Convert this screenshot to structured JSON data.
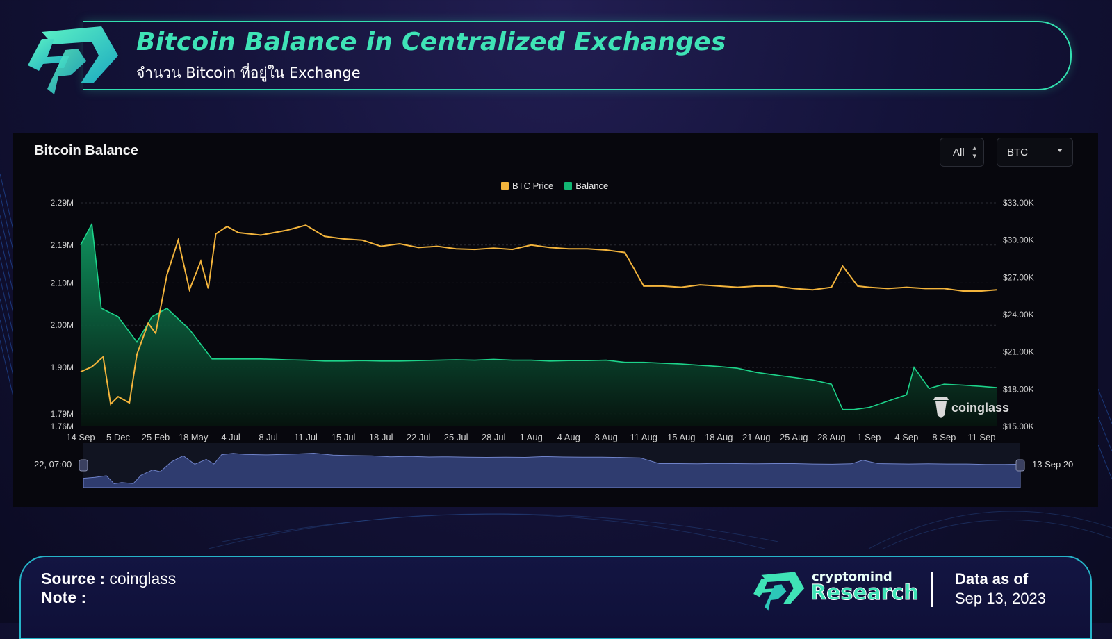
{
  "header": {
    "title": "Bitcoin Balance in Centralized Exchanges",
    "subtitle": "จำนวน Bitcoin ที่อยู่ใน Exchange"
  },
  "panel": {
    "title": "Bitcoin Balance",
    "range_select": "All",
    "asset_select": "BTC",
    "watermark": "coinglass",
    "navigator_start": "22, 07:00",
    "navigator_end": "13 Sep 20"
  },
  "colors": {
    "accent": "#3fe3b6",
    "price": "#f3b43c",
    "balance": "#12b673"
  },
  "chart_data": {
    "type": "area",
    "legend": [
      "BTC Price",
      "Balance"
    ],
    "legend_position": "top-center",
    "grid": true,
    "x_labels": [
      "14 Sep",
      "5 Dec",
      "25 Feb",
      "18 May",
      "4 Jul",
      "8 Jul",
      "11 Jul",
      "15 Jul",
      "18 Jul",
      "22 Jul",
      "25 Jul",
      "28 Jul",
      "1 Aug",
      "4 Aug",
      "8 Aug",
      "11 Aug",
      "15 Aug",
      "18 Aug",
      "21 Aug",
      "25 Aug",
      "28 Aug",
      "1 Sep",
      "4 Sep",
      "8 Sep",
      "11 Sep"
    ],
    "y_left_ticks": [
      "2.29M",
      "2.19M",
      "2.10M",
      "2.00M",
      "1.90M",
      "1.79M",
      "1.76M"
    ],
    "y_right_ticks": [
      "$33.00K",
      "$30.00K",
      "$27.00K",
      "$24.00K",
      "$21.00K",
      "$18.00K",
      "$15.00K"
    ],
    "y_left_range": [
      1.76,
      2.29
    ],
    "y_right_range": [
      15000,
      33000
    ],
    "series": [
      {
        "name": "Balance",
        "axis": "left",
        "unit": "M BTC",
        "x": [
          0,
          0.3,
          0.55,
          1,
          1.5,
          1.9,
          2.3,
          2.9,
          3.5,
          4.2,
          4.8,
          5.5,
          6,
          6.5,
          7,
          7.5,
          8,
          8.5,
          9,
          9.5,
          10,
          10.5,
          11,
          11.5,
          12,
          12.5,
          13,
          13.5,
          14,
          14.5,
          15,
          15.5,
          16,
          16.5,
          17,
          17.5,
          18,
          18.5,
          19,
          19.5,
          20,
          20.3,
          20.6,
          21,
          21.5,
          22,
          22.2,
          22.6,
          23,
          23.5,
          24,
          24.4
        ],
        "values": [
          2.19,
          2.24,
          2.04,
          2.02,
          1.96,
          2.02,
          2.04,
          1.99,
          1.92,
          1.92,
          1.92,
          1.918,
          1.917,
          1.915,
          1.915,
          1.916,
          1.915,
          1.915,
          1.916,
          1.917,
          1.918,
          1.917,
          1.919,
          1.917,
          1.917,
          1.915,
          1.916,
          1.916,
          1.917,
          1.912,
          1.912,
          1.91,
          1.908,
          1.905,
          1.902,
          1.898,
          1.888,
          1.882,
          1.876,
          1.87,
          1.86,
          1.8,
          1.8,
          1.805,
          1.82,
          1.835,
          1.9,
          1.85,
          1.86,
          1.858,
          1.855,
          1.852
        ]
      },
      {
        "name": "BTC Price",
        "axis": "right",
        "unit": "USD",
        "x": [
          0,
          0.3,
          0.6,
          0.8,
          1,
          1.3,
          1.5,
          1.8,
          2.0,
          2.3,
          2.6,
          2.9,
          3.2,
          3.4,
          3.6,
          3.9,
          4.2,
          4.8,
          5.5,
          6,
          6.5,
          7,
          7.5,
          8,
          8.5,
          9,
          9.5,
          10,
          10.5,
          11,
          11.5,
          12,
          12.5,
          13,
          13.5,
          14,
          14.5,
          15,
          15.5,
          16,
          16.5,
          17,
          17.5,
          18,
          18.5,
          19,
          19.5,
          20,
          20.3,
          20.7,
          21,
          21.5,
          22,
          22.5,
          23,
          23.5,
          24,
          24.4
        ],
        "values": [
          19400,
          19800,
          20600,
          16800,
          17400,
          16900,
          20800,
          23300,
          22500,
          27200,
          30000,
          26000,
          28300,
          26100,
          30500,
          31100,
          30600,
          30400,
          30800,
          31200,
          30300,
          30100,
          30000,
          29500,
          29700,
          29400,
          29500,
          29300,
          29250,
          29350,
          29250,
          29600,
          29400,
          29300,
          29300,
          29200,
          29000,
          26300,
          26300,
          26200,
          26400,
          26300,
          26200,
          26300,
          26300,
          26100,
          26000,
          26200,
          27900,
          26300,
          26200,
          26100,
          26200,
          26100,
          26100,
          25900,
          25900,
          26000
        ]
      }
    ]
  },
  "footer": {
    "source_label": "Source :",
    "source_value": "coinglass",
    "note_label": "Note :",
    "brand_small": "cryptomind",
    "brand_big": "Research",
    "data_as_of_label": "Data as of",
    "data_as_of_value": "Sep 13, 2023"
  }
}
